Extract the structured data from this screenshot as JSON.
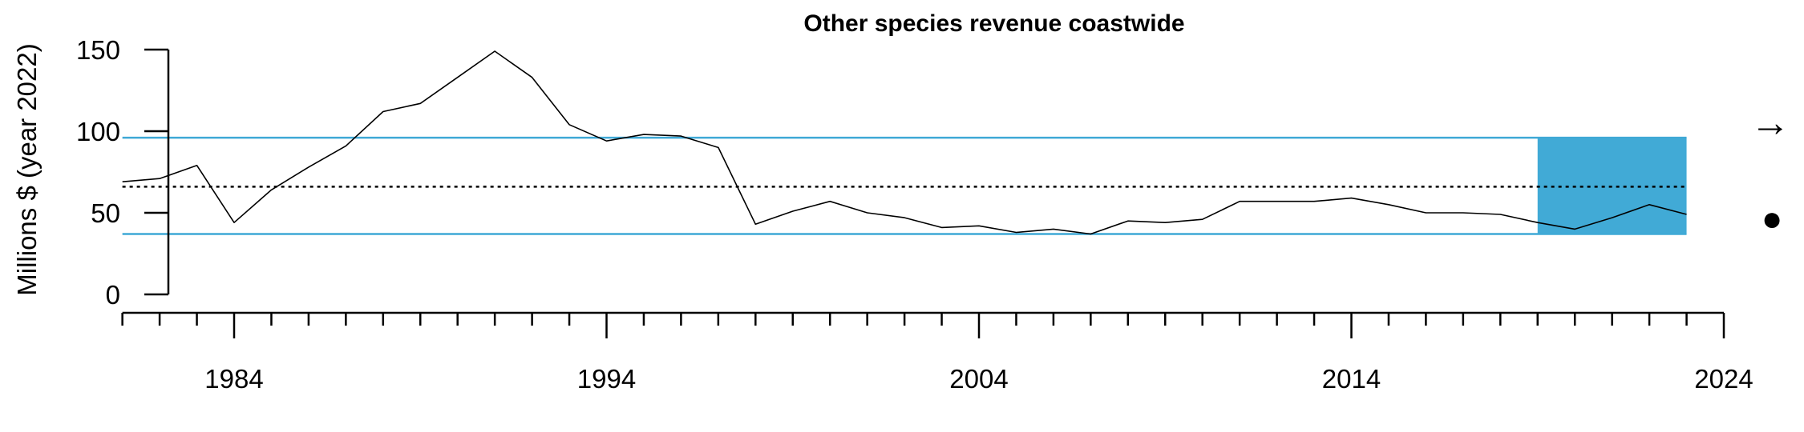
{
  "chart_data": {
    "type": "line",
    "title": "Other species revenue coastwide",
    "ylabel": "Millions $ (year 2022)",
    "xlabel": "",
    "xlim": [
      1981,
      2024
    ],
    "ylim": [
      0,
      150
    ],
    "y_ticks": [
      0,
      50,
      100,
      150
    ],
    "x_ticks": [
      1984,
      1994,
      2004,
      2014,
      2024
    ],
    "x_minor_tick_step": 1,
    "grid": false,
    "series": [
      {
        "x": [
          1981,
          1982,
          1983,
          1984,
          1985,
          1986,
          1987,
          1988,
          1989,
          1990,
          1991,
          1992,
          1993,
          1994,
          1995,
          1996,
          1997,
          1998,
          1999,
          2000,
          2001,
          2002,
          2003,
          2004,
          2005,
          2006,
          2007,
          2008,
          2009,
          2010,
          2011,
          2012,
          2013,
          2014,
          2015,
          2016,
          2017,
          2018,
          2019,
          2020,
          2021,
          2022,
          2023
        ],
        "y": [
          69,
          71,
          79,
          44,
          64,
          78,
          91,
          112,
          117,
          133,
          149,
          133,
          104,
          94,
          98,
          97,
          90,
          43,
          51,
          57,
          50,
          47,
          41,
          42,
          38,
          40,
          37,
          45,
          44,
          46,
          57,
          57,
          57,
          59,
          55,
          50,
          50,
          49,
          44,
          40,
          47,
          55,
          49
        ]
      }
    ],
    "reference_lines": {
      "mean": 66,
      "upper_sd": 96,
      "lower_sd": 37
    },
    "recent_window": {
      "start": 2019,
      "end": 2023
    },
    "trend_symbol": "→",
    "status_symbol": "●",
    "colors": {
      "line": "#000000",
      "sd_lines": "#3fa9d6",
      "recent_shade": "#41aad6",
      "mean_line": "#000000"
    }
  }
}
